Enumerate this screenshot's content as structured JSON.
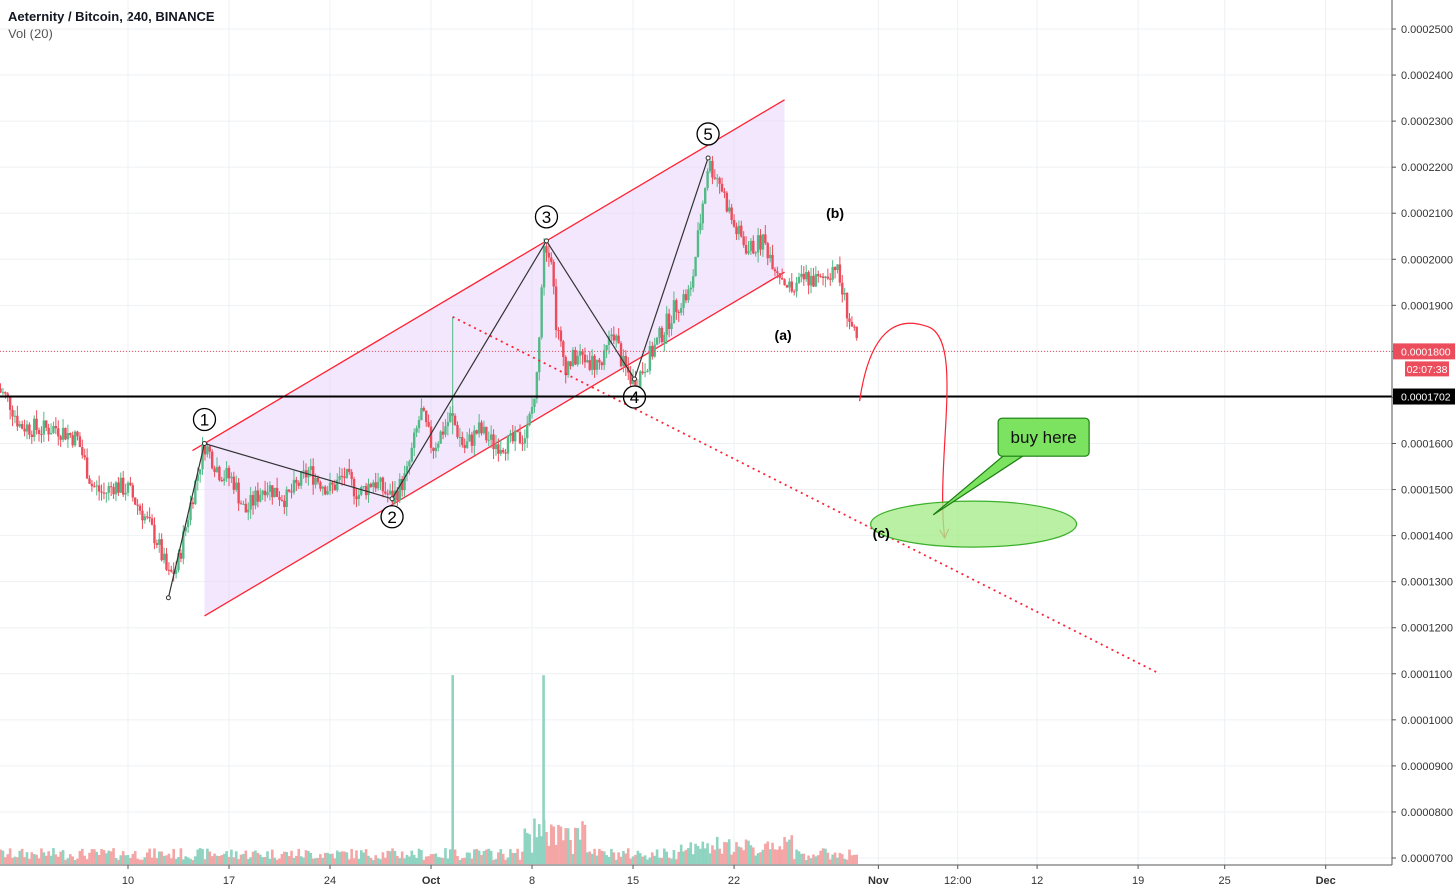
{
  "header": {
    "symbol": "Aeternity / Bitcoin, 240, BINANCE",
    "volume_label": "Vol (20)"
  },
  "colors": {
    "up": "#53b987",
    "down": "#eb4d5c",
    "vol_up": "#8fd3c1",
    "vol_down": "#f4a6a6",
    "channel": "#ff2233",
    "channel_fill": "#e7d3fb",
    "support": "#000000",
    "ellipse_fill": "#a8ec8c",
    "callout_fill": "#7be35f"
  },
  "chart_data": {
    "type": "candlestick",
    "title": "Aeternity / Bitcoin, 240, BINANCE",
    "ylim": [
      6.2e-05,
      0.000255
    ],
    "y_ticks": [
      "0.0002500",
      "0.0002400",
      "0.0002300",
      "0.0002200",
      "0.0002100",
      "0.0002000",
      "0.0001900",
      "0.0001800",
      "0.0001700",
      "0.0001600",
      "0.0001500",
      "0.0001400",
      "0.0001300",
      "0.0001200",
      "0.0001100",
      "0.0001000",
      "0.0000900",
      "0.0000800",
      "0.0000700"
    ],
    "y_tick_values": [
      0.00025,
      0.00024,
      0.00023,
      0.00022,
      0.00021,
      0.0002,
      0.00019,
      0.00018,
      0.00017,
      0.00016,
      0.00015,
      0.00014,
      0.00013,
      0.00012,
      0.00011,
      0.0001,
      9e-05,
      8e-05,
      7e-05
    ],
    "x_ticks": [
      "10",
      "17",
      "24",
      "Oct",
      "8",
      "15",
      "22",
      "Nov",
      "12:00",
      "12",
      "19",
      "25",
      "Dec"
    ],
    "x_tick_days": [
      10,
      17,
      24,
      31,
      38,
      45,
      52,
      62,
      67.5,
      73,
      80,
      86,
      93
    ],
    "x_bold": [
      "Oct",
      "Nov",
      "Dec"
    ],
    "x_range_days": [
      1,
      98.3
    ],
    "price_path": [
      [
        1,
        0.000172
      ],
      [
        1.8,
        0.000169
      ],
      [
        2.5,
        0.000164
      ],
      [
        4,
        0.000163
      ],
      [
        5,
        0.0001635
      ],
      [
        6.5,
        0.000161
      ],
      [
        7.5,
        0.000151
      ],
      [
        8.3,
        0.000149
      ],
      [
        9,
        0.000151
      ],
      [
        10,
        0.00015
      ],
      [
        11,
        0.000145
      ],
      [
        12,
        0.000139
      ],
      [
        12.8,
        0.000131
      ],
      [
        13.4,
        0.000133
      ],
      [
        14.2,
        0.000145
      ],
      [
        15.3,
        0.00016
      ],
      [
        16.3,
        0.000154
      ],
      [
        17.3,
        0.000152
      ],
      [
        18.1,
        0.000145
      ],
      [
        19.5,
        0.000151
      ],
      [
        21,
        0.000148
      ],
      [
        22.5,
        0.000154
      ],
      [
        24,
        0.00015
      ],
      [
        25,
        0.000153
      ],
      [
        26,
        0.000149
      ],
      [
        27,
        0.000152
      ],
      [
        28.3,
        0.000148
      ],
      [
        29.3,
        0.000153
      ],
      [
        30.3,
        0.000167
      ],
      [
        31.1,
        0.000159
      ],
      [
        32.4,
        0.000166
      ],
      [
        33.3,
        0.000159
      ],
      [
        34.3,
        0.000163
      ],
      [
        35.3,
        0.00016
      ],
      [
        36.5,
        0.00016
      ],
      [
        37.6,
        0.000162
      ],
      [
        38.3,
        0.000172
      ],
      [
        38.8,
        0.000204
      ],
      [
        39.3,
        0.000202
      ],
      [
        39.7,
        0.000185
      ],
      [
        40.3,
        0.000177
      ],
      [
        41.2,
        0.000179
      ],
      [
        42,
        0.000178
      ],
      [
        42.9,
        0.000177
      ],
      [
        43.6,
        0.000185
      ],
      [
        44.3,
        0.000177
      ],
      [
        45.1,
        0.000173
      ],
      [
        46,
        0.000178
      ],
      [
        47,
        0.000184
      ],
      [
        48,
        0.00019
      ],
      [
        49,
        0.000193
      ],
      [
        50.2,
        0.000221
      ],
      [
        51,
        0.000217
      ],
      [
        52,
        0.000207
      ],
      [
        53,
        0.000202
      ],
      [
        54,
        0.000204
      ],
      [
        55,
        0.000198
      ],
      [
        56,
        0.000193
      ],
      [
        57,
        0.000196
      ],
      [
        58,
        0.000195
      ],
      [
        59,
        0.000199
      ],
      [
        60,
        0.000187
      ],
      [
        60.6,
        0.00018
      ]
    ],
    "volume_peaks": [
      {
        "day": 32.5,
        "volume": 0.0001097
      },
      {
        "day": 38.8,
        "volume": 0.0001097
      }
    ],
    "last_price": "0.0001800",
    "countdown": "02:07:38",
    "support_level": "0.0001702",
    "waves": [
      {
        "label": "1",
        "day": 15.3,
        "price": 0.00016
      },
      {
        "label": "2",
        "day": 28.3,
        "price": 0.000148
      },
      {
        "label": "3",
        "day": 39.0,
        "price": 0.000204
      },
      {
        "label": "4",
        "day": 45.1,
        "price": 0.000174
      },
      {
        "label": "5",
        "day": 50.2,
        "price": 0.000222
      }
    ],
    "annotations": [
      "(a)",
      "(b)",
      "(c)",
      "buy here"
    ],
    "legend": [
      "Vol (20)"
    ]
  }
}
